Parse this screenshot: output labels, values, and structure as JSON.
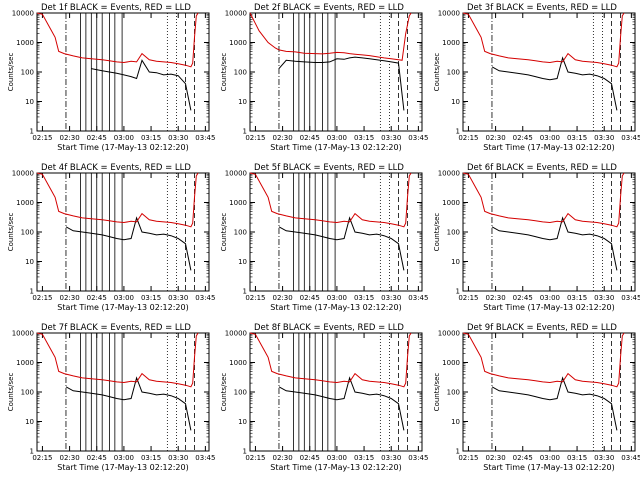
{
  "colors": {
    "events": "#000000",
    "lld": "#d40000",
    "background": "#ffffff"
  },
  "shared": {
    "xlabel": "Start Time (17-May-13 02:12:20)",
    "ylabel": "Counts/sec",
    "x_ticks": [
      "02:15",
      "02:30",
      "02:45",
      "03:00",
      "03:15",
      "03:30",
      "03:45"
    ],
    "y_ticks": [
      "1",
      "10",
      "100",
      "1000",
      "10000"
    ],
    "y_scale": "log",
    "ylim": [
      1,
      10000
    ],
    "xlim_minutes_after_02:12:20": [
      0,
      95
    ]
  },
  "chart_data": [
    {
      "type": "line",
      "title": "Det 1f BLACK = Events, RED = LLD",
      "series": [
        {
          "name": "Events",
          "color": "#000000",
          "x": [
            3,
            8,
            12,
            18,
            24,
            30,
            36,
            40,
            44,
            48,
            52,
            55,
            58,
            62,
            66,
            70,
            74,
            78,
            82,
            85
          ],
          "y": [
            null,
            null,
            null,
            null,
            null,
            130,
            110,
            100,
            90,
            80,
            70,
            60,
            250,
            100,
            95,
            80,
            85,
            75,
            40,
            5
          ]
        },
        {
          "name": "LLD",
          "color": "#d40000",
          "x": [
            0,
            3,
            8,
            10,
            12,
            15,
            20,
            25,
            30,
            36,
            40,
            44,
            48,
            52,
            55,
            58,
            62,
            66,
            70,
            74,
            78,
            82,
            85,
            86,
            87,
            88,
            89
          ],
          "y": [
            10000,
            9000,
            2500,
            1500,
            500,
            420,
            350,
            300,
            280,
            260,
            240,
            220,
            210,
            230,
            220,
            420,
            260,
            230,
            220,
            210,
            190,
            170,
            150,
            200,
            1500,
            8000,
            10000
          ]
        }
      ],
      "markers": {
        "dash_dot": [
          16
        ],
        "solid": [
          24,
          27,
          30,
          33,
          36,
          40,
          43,
          47
        ],
        "dotted": [
          72,
          77
        ],
        "dashed": [
          82,
          87
        ]
      }
    },
    {
      "type": "line",
      "title": "Det 2f BLACK = Events, RED = LLD",
      "series": [
        {
          "name": "Events",
          "color": "#000000",
          "x": [
            16,
            20,
            25,
            30,
            36,
            40,
            44,
            48,
            52,
            55,
            58,
            62,
            66,
            70,
            74,
            78,
            82,
            85
          ],
          "y": [
            130,
            250,
            230,
            220,
            210,
            210,
            220,
            280,
            270,
            300,
            320,
            300,
            280,
            260,
            240,
            220,
            200,
            5
          ]
        },
        {
          "name": "LLD",
          "color": "#d40000",
          "x": [
            0,
            5,
            10,
            14,
            16,
            20,
            25,
            30,
            36,
            40,
            44,
            48,
            52,
            55,
            58,
            62,
            66,
            70,
            74,
            78,
            82,
            84,
            86,
            88,
            89
          ],
          "y": [
            10000,
            2500,
            1000,
            650,
            560,
            500,
            480,
            430,
            420,
            410,
            430,
            460,
            450,
            420,
            400,
            380,
            360,
            330,
            300,
            280,
            260,
            250,
            2000,
            8000,
            10000
          ]
        }
      ],
      "markers": {
        "dash_dot": [
          16
        ],
        "solid": [
          24,
          27,
          30,
          33,
          36,
          40,
          43,
          47
        ],
        "dotted": [
          72,
          77
        ],
        "dashed": [
          82,
          87
        ]
      }
    },
    {
      "type": "line",
      "title": "Det 3f BLACK = Events, RED = LLD",
      "series": [
        {
          "name": "Events",
          "color": "#000000",
          "x": [
            16,
            20,
            25,
            30,
            36,
            40,
            44,
            48,
            52,
            55,
            58,
            62,
            66,
            70,
            74,
            78,
            82,
            85
          ],
          "y": [
            150,
            110,
            100,
            90,
            80,
            70,
            60,
            55,
            60,
            300,
            100,
            90,
            80,
            85,
            75,
            60,
            40,
            5
          ]
        },
        {
          "name": "LLD",
          "color": "#d40000",
          "x": [
            0,
            3,
            8,
            10,
            12,
            15,
            20,
            25,
            30,
            36,
            40,
            44,
            48,
            52,
            55,
            58,
            62,
            66,
            70,
            74,
            78,
            82,
            85,
            86,
            87,
            88,
            89
          ],
          "y": [
            10000,
            9000,
            2500,
            1500,
            500,
            420,
            350,
            300,
            280,
            260,
            240,
            220,
            210,
            230,
            220,
            420,
            260,
            230,
            220,
            210,
            190,
            170,
            150,
            200,
            1500,
            8000,
            10000
          ]
        }
      ],
      "markers": {
        "dash_dot": [
          16
        ],
        "solid": [],
        "dotted": [
          72,
          77
        ],
        "dashed": [
          82,
          87
        ]
      }
    },
    {
      "type": "line",
      "title": "Det 4f BLACK = Events, RED = LLD",
      "series": [
        {
          "name": "Events",
          "color": "#000000",
          "x": [
            16,
            20,
            25,
            30,
            36,
            40,
            44,
            48,
            52,
            55,
            58,
            62,
            66,
            70,
            74,
            78,
            82,
            85
          ],
          "y": [
            150,
            110,
            100,
            90,
            80,
            70,
            60,
            55,
            60,
            300,
            100,
            90,
            80,
            85,
            75,
            60,
            40,
            5
          ]
        },
        {
          "name": "LLD",
          "color": "#d40000",
          "x": [
            0,
            3,
            8,
            10,
            12,
            15,
            20,
            25,
            30,
            36,
            40,
            44,
            48,
            52,
            55,
            58,
            62,
            66,
            70,
            74,
            78,
            82,
            85,
            86,
            87,
            88,
            89
          ],
          "y": [
            10000,
            9000,
            2500,
            1500,
            500,
            420,
            350,
            300,
            280,
            260,
            240,
            220,
            210,
            230,
            220,
            420,
            260,
            230,
            220,
            210,
            190,
            170,
            150,
            200,
            1500,
            8000,
            10000
          ]
        }
      ],
      "markers": {
        "dash_dot": [
          16
        ],
        "solid": [
          24,
          27,
          30,
          33,
          36,
          40,
          43,
          47
        ],
        "dotted": [
          72,
          77
        ],
        "dashed": [
          82,
          87
        ]
      }
    },
    {
      "type": "line",
      "title": "Det 5f BLACK = Events, RED = LLD",
      "series": [
        {
          "name": "Events",
          "color": "#000000",
          "x": [
            16,
            20,
            25,
            30,
            36,
            40,
            44,
            48,
            52,
            55,
            58,
            62,
            66,
            70,
            74,
            78,
            82,
            85
          ],
          "y": [
            150,
            110,
            100,
            90,
            80,
            70,
            60,
            55,
            60,
            300,
            100,
            90,
            80,
            85,
            75,
            60,
            40,
            5
          ]
        },
        {
          "name": "LLD",
          "color": "#d40000",
          "x": [
            0,
            3,
            8,
            10,
            12,
            15,
            20,
            25,
            30,
            36,
            40,
            44,
            48,
            52,
            55,
            58,
            62,
            66,
            70,
            74,
            78,
            82,
            85,
            86,
            87,
            88,
            89
          ],
          "y": [
            10000,
            9000,
            2500,
            1500,
            500,
            420,
            350,
            300,
            280,
            260,
            240,
            220,
            210,
            230,
            220,
            420,
            260,
            230,
            220,
            210,
            190,
            170,
            150,
            200,
            1500,
            8000,
            10000
          ]
        }
      ],
      "markers": {
        "dash_dot": [
          16
        ],
        "solid": [
          24,
          27,
          30,
          33,
          36,
          40,
          43,
          47
        ],
        "dotted": [
          72,
          77
        ],
        "dashed": [
          82,
          87
        ]
      }
    },
    {
      "type": "line",
      "title": "Det 6f BLACK = Events, RED = LLD",
      "series": [
        {
          "name": "Events",
          "color": "#000000",
          "x": [
            16,
            20,
            25,
            30,
            36,
            40,
            44,
            48,
            52,
            55,
            58,
            62,
            66,
            70,
            74,
            78,
            82,
            85
          ],
          "y": [
            150,
            110,
            100,
            90,
            80,
            70,
            60,
            55,
            60,
            300,
            100,
            90,
            80,
            85,
            75,
            60,
            40,
            5
          ]
        },
        {
          "name": "LLD",
          "color": "#d40000",
          "x": [
            0,
            3,
            8,
            10,
            12,
            15,
            20,
            25,
            30,
            36,
            40,
            44,
            48,
            52,
            55,
            58,
            62,
            66,
            70,
            74,
            78,
            82,
            85,
            86,
            87,
            88,
            89
          ],
          "y": [
            10000,
            9000,
            2500,
            1500,
            500,
            420,
            350,
            300,
            280,
            260,
            240,
            220,
            210,
            230,
            220,
            420,
            260,
            230,
            220,
            210,
            190,
            170,
            150,
            200,
            1500,
            8000,
            10000
          ]
        }
      ],
      "markers": {
        "dash_dot": [
          16
        ],
        "solid": [],
        "dotted": [
          72,
          77
        ],
        "dashed": [
          82,
          87
        ]
      }
    },
    {
      "type": "line",
      "title": "Det 7f BLACK = Events, RED = LLD",
      "series": [
        {
          "name": "Events",
          "color": "#000000",
          "x": [
            16,
            20,
            25,
            30,
            36,
            40,
            44,
            48,
            52,
            55,
            58,
            62,
            66,
            70,
            74,
            78,
            82,
            85
          ],
          "y": [
            150,
            110,
            100,
            90,
            80,
            70,
            60,
            55,
            60,
            300,
            100,
            90,
            80,
            85,
            75,
            60,
            40,
            5
          ]
        },
        {
          "name": "LLD",
          "color": "#d40000",
          "x": [
            0,
            3,
            8,
            10,
            12,
            15,
            20,
            25,
            30,
            36,
            40,
            44,
            48,
            52,
            55,
            58,
            62,
            66,
            70,
            74,
            78,
            82,
            85,
            86,
            87,
            88,
            89
          ],
          "y": [
            10000,
            9000,
            2500,
            1500,
            500,
            420,
            350,
            300,
            280,
            260,
            240,
            220,
            210,
            230,
            220,
            420,
            260,
            230,
            220,
            210,
            190,
            170,
            150,
            200,
            1500,
            8000,
            10000
          ]
        }
      ],
      "markers": {
        "dash_dot": [
          16
        ],
        "solid": [
          24,
          27,
          30,
          33,
          36,
          40,
          43,
          47
        ],
        "dotted": [
          72,
          77
        ],
        "dashed": [
          82,
          87
        ]
      }
    },
    {
      "type": "line",
      "title": "Det 8f BLACK = Events, RED = LLD",
      "series": [
        {
          "name": "Events",
          "color": "#000000",
          "x": [
            16,
            20,
            25,
            30,
            36,
            40,
            44,
            48,
            52,
            55,
            58,
            62,
            66,
            70,
            74,
            78,
            82,
            85
          ],
          "y": [
            150,
            110,
            100,
            90,
            80,
            70,
            60,
            55,
            60,
            300,
            100,
            90,
            80,
            85,
            75,
            60,
            40,
            5
          ]
        },
        {
          "name": "LLD",
          "color": "#d40000",
          "x": [
            0,
            3,
            8,
            10,
            12,
            15,
            20,
            25,
            30,
            36,
            40,
            44,
            48,
            52,
            55,
            58,
            62,
            66,
            70,
            74,
            78,
            82,
            85,
            86,
            87,
            88,
            89
          ],
          "y": [
            10000,
            9000,
            2500,
            1500,
            500,
            420,
            350,
            300,
            280,
            260,
            240,
            220,
            210,
            230,
            220,
            420,
            260,
            230,
            220,
            210,
            190,
            170,
            150,
            200,
            1500,
            8000,
            10000
          ]
        }
      ],
      "markers": {
        "dash_dot": [
          16
        ],
        "solid": [
          24,
          27,
          30,
          33,
          36,
          40,
          43,
          47
        ],
        "dotted": [
          72,
          77
        ],
        "dashed": [
          82,
          87
        ]
      }
    },
    {
      "type": "line",
      "title": "Det 9f BLACK = Events, RED = LLD",
      "series": [
        {
          "name": "Events",
          "color": "#000000",
          "x": [
            16,
            20,
            25,
            30,
            36,
            40,
            44,
            48,
            52,
            55,
            58,
            62,
            66,
            70,
            74,
            78,
            82,
            85
          ],
          "y": [
            150,
            110,
            100,
            90,
            80,
            70,
            60,
            55,
            60,
            300,
            100,
            90,
            80,
            85,
            75,
            60,
            40,
            5
          ]
        },
        {
          "name": "LLD",
          "color": "#d40000",
          "x": [
            0,
            3,
            8,
            10,
            12,
            15,
            20,
            25,
            30,
            36,
            40,
            44,
            48,
            52,
            55,
            58,
            62,
            66,
            70,
            74,
            78,
            82,
            85,
            86,
            87,
            88,
            89
          ],
          "y": [
            10000,
            9000,
            2500,
            1500,
            500,
            420,
            350,
            300,
            280,
            260,
            240,
            220,
            210,
            230,
            220,
            420,
            260,
            230,
            220,
            210,
            190,
            170,
            150,
            200,
            1500,
            8000,
            10000
          ]
        }
      ],
      "markers": {
        "dash_dot": [
          16
        ],
        "solid": [],
        "dotted": [
          72,
          77
        ],
        "dashed": [
          82,
          87
        ]
      }
    }
  ]
}
